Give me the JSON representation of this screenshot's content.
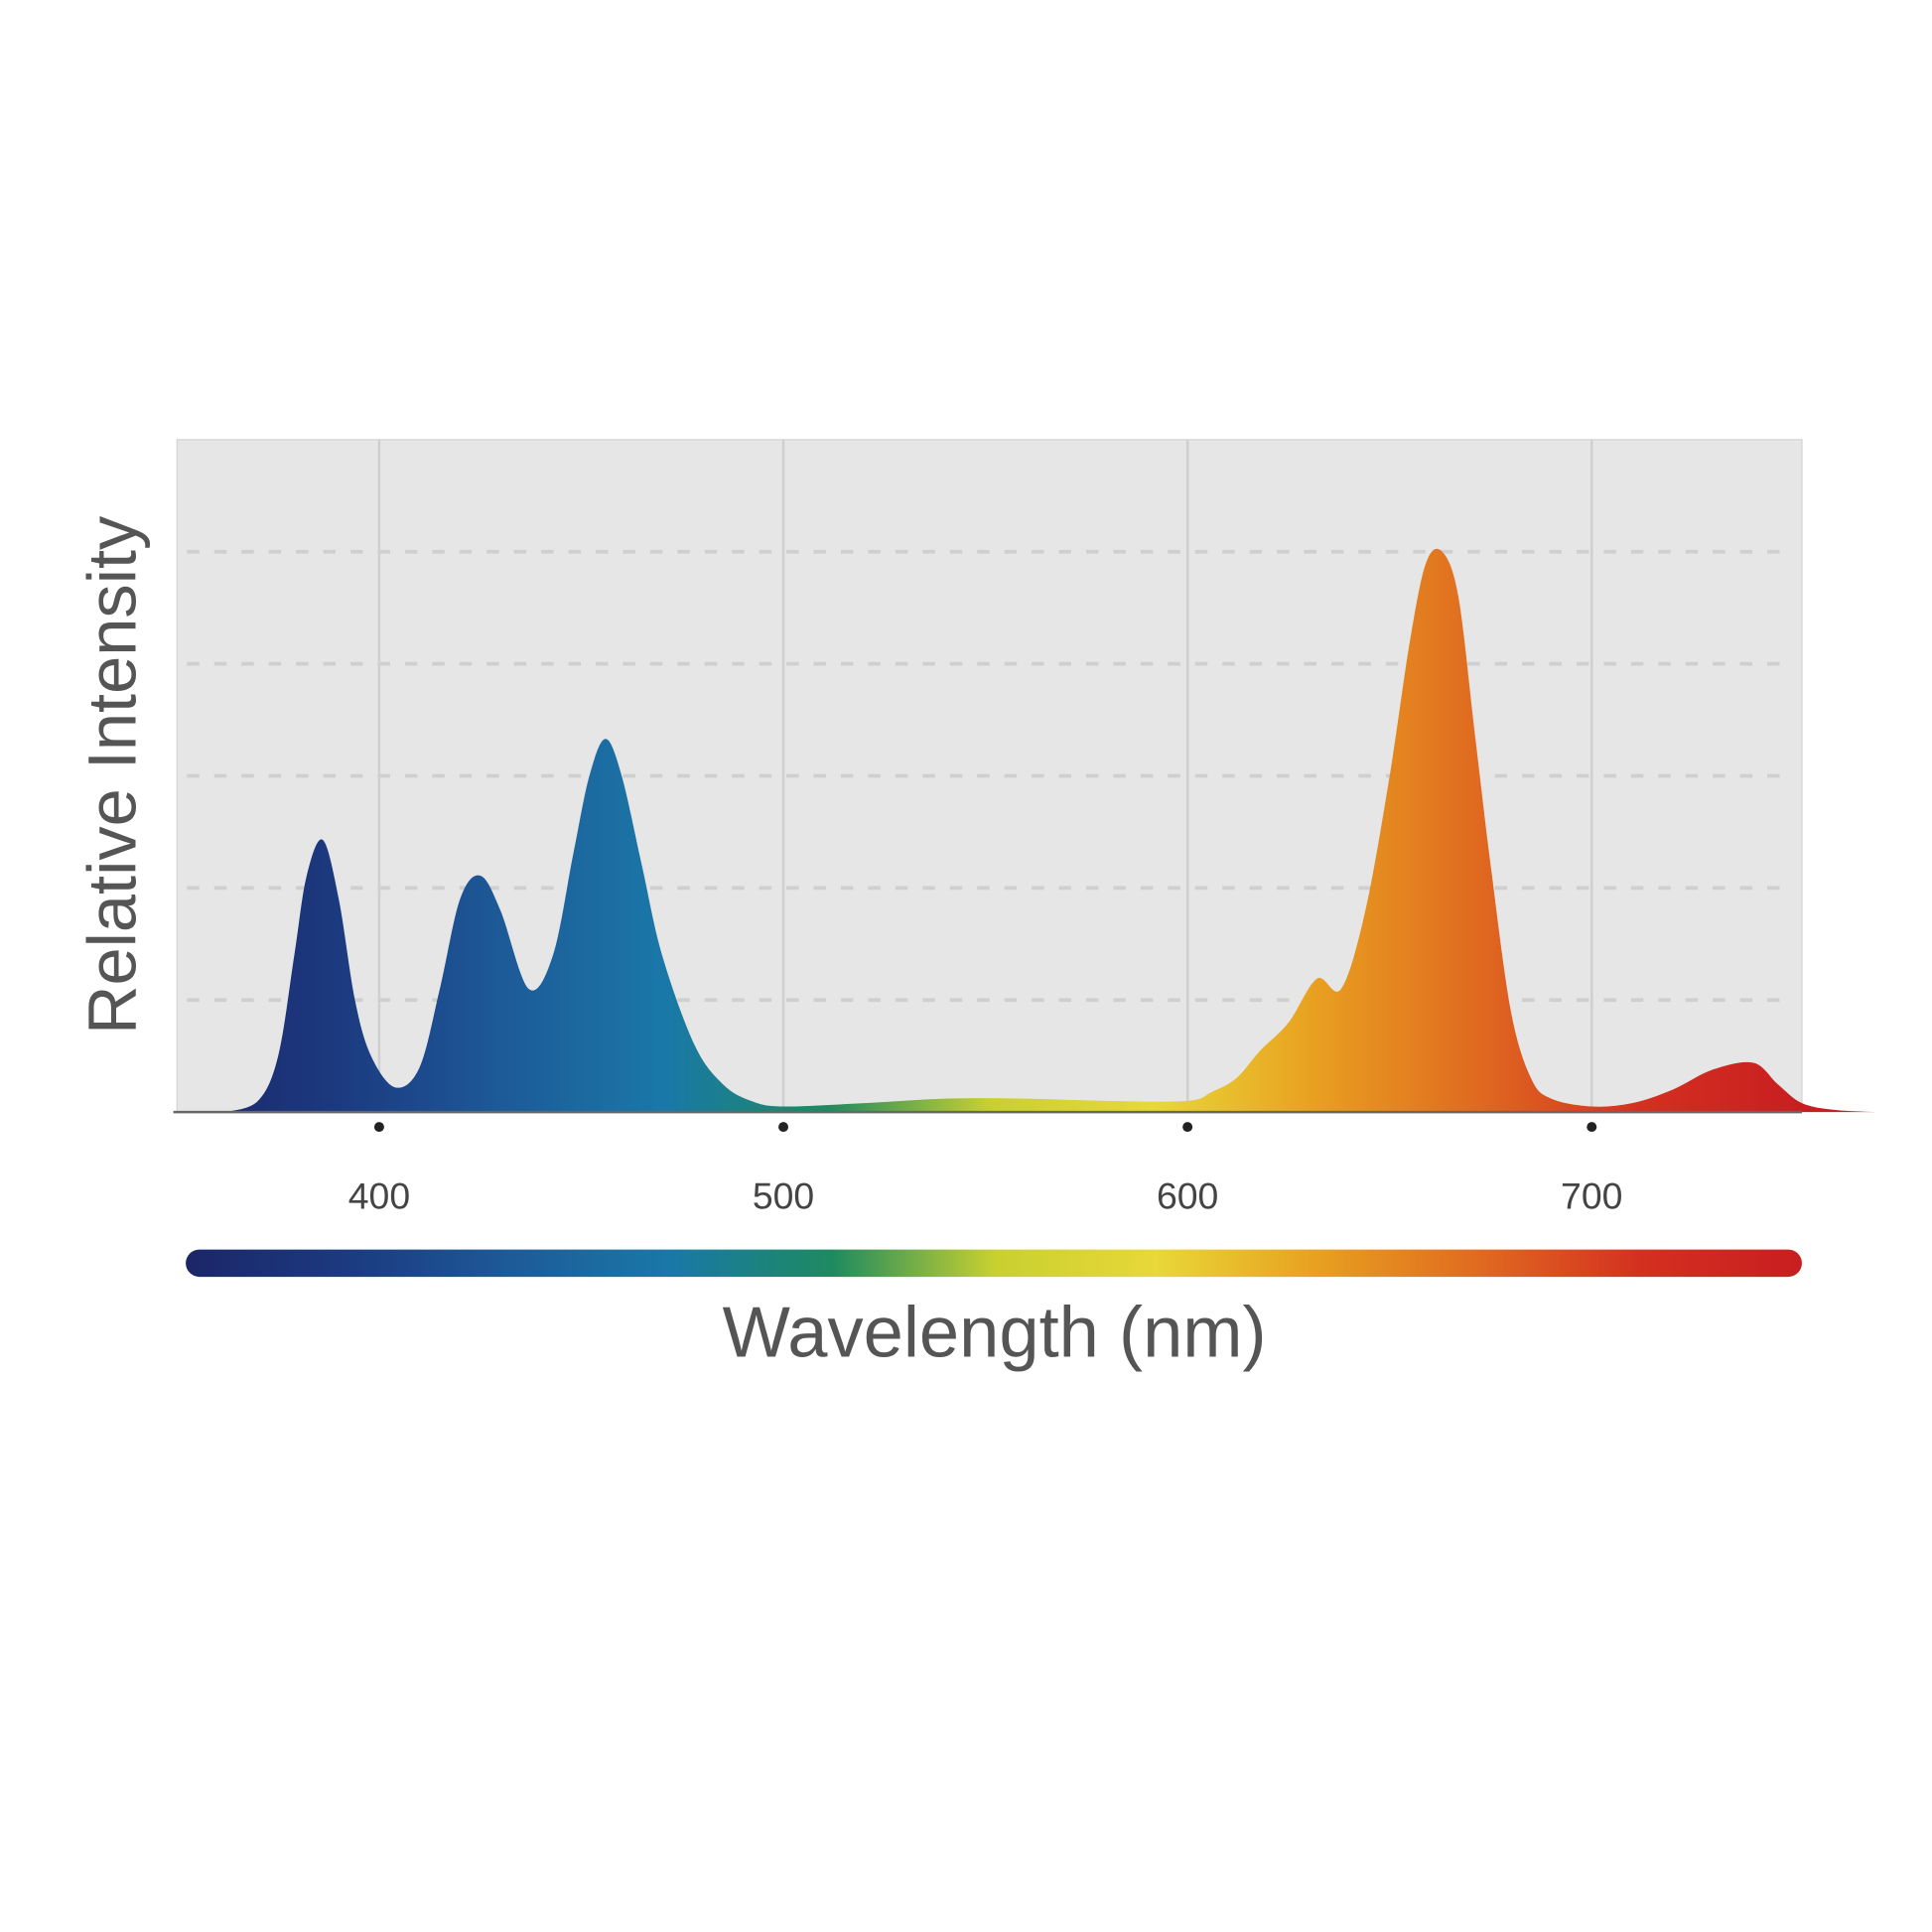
{
  "chart_data": {
    "type": "area",
    "ylabel": "Relative Intensity",
    "xlabel": "Wavelength (nm)",
    "x": [
      362,
      370,
      375,
      379,
      382,
      386,
      390,
      394,
      398,
      404,
      410,
      415,
      420,
      425,
      430,
      437,
      443,
      448,
      452,
      456,
      460,
      465,
      470,
      478,
      485,
      492,
      500,
      520,
      540,
      560,
      580,
      600,
      606,
      612,
      618,
      625,
      632,
      638,
      644,
      650,
      655,
      659,
      663,
      667,
      671,
      675,
      680,
      685,
      690,
      700,
      710,
      720,
      730,
      740,
      746,
      752,
      760,
      770
    ],
    "values": [
      0,
      0.1,
      0.5,
      1.4,
      2.1,
      2.43,
      1.9,
      1.0,
      0.5,
      0.22,
      0.4,
      1.1,
      1.9,
      2.11,
      1.8,
      1.1,
      1.4,
      2.3,
      3.0,
      3.33,
      3.0,
      2.2,
      1.4,
      0.6,
      0.25,
      0.1,
      0.05,
      0.08,
      0.12,
      0.12,
      0.1,
      0.1,
      0.18,
      0.3,
      0.55,
      0.8,
      1.19,
      1.1,
      1.8,
      3.0,
      4.2,
      4.9,
      5.0,
      4.6,
      3.4,
      2.2,
      0.9,
      0.3,
      0.12,
      0.05,
      0.08,
      0.2,
      0.38,
      0.44,
      0.25,
      0.08,
      0.02,
      0
    ],
    "colors": [
      "#1b2668",
      "#1c3a80",
      "#1d5a98",
      "#1a78a8",
      "#1e8a60",
      "#c8d030",
      "#e8d838",
      "#e8a020",
      "#e06a20",
      "#d43020",
      "#c81e20"
    ],
    "xlim": [
      350,
      752
    ],
    "xticks": [
      400,
      500,
      600,
      700
    ],
    "ylim": [
      0,
      6
    ],
    "yticks": [
      1,
      2,
      3,
      4,
      5
    ],
    "grid": true
  }
}
